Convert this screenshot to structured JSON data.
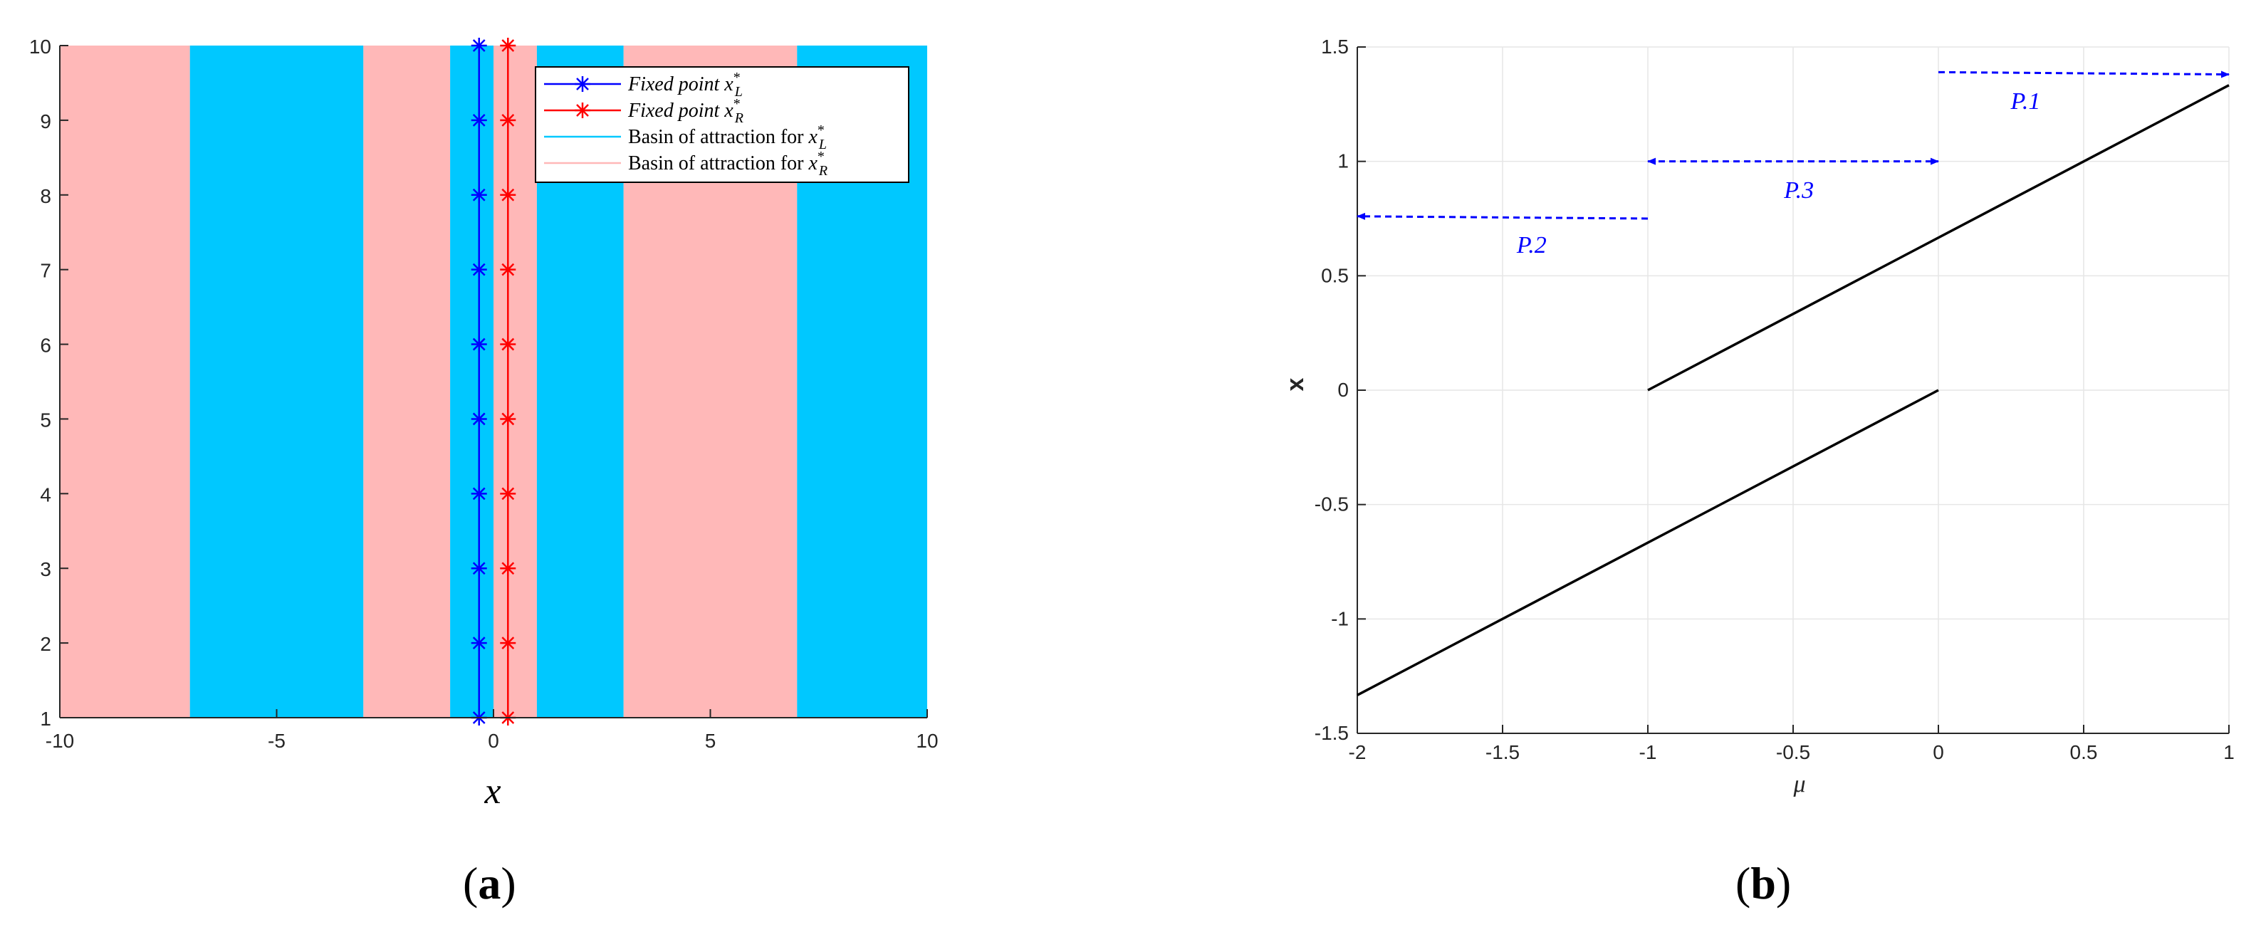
{
  "panel_labels": {
    "a_open": "(",
    "a_letter": "a",
    "a_close": ")",
    "b_open": "(",
    "b_letter": "b",
    "b_close": ")"
  },
  "colors": {
    "basin_left": "#00c8ff",
    "basin_right": "#ffb8b8",
    "fixed_left": "#0000ff",
    "fixed_right": "#ff0000",
    "branch": "#000000",
    "annotation": "#0000ff",
    "grid": "#e6e6e6"
  },
  "chart_data": [
    {
      "type": "area",
      "xlabel": "x",
      "ylabel": "",
      "xlim": [
        -10,
        10
      ],
      "ylim": [
        1,
        10
      ],
      "xticks": [
        -10,
        -5,
        0,
        5,
        10
      ],
      "yticks": [
        1,
        2,
        3,
        4,
        5,
        6,
        7,
        8,
        9,
        10
      ],
      "grid": false,
      "legend_position": "top-right",
      "basins": [
        {
          "from": -10,
          "to": -7,
          "basin": "R"
        },
        {
          "from": -7,
          "to": -3,
          "basin": "L"
        },
        {
          "from": -3,
          "to": -1,
          "basin": "R"
        },
        {
          "from": -1,
          "to": 0,
          "basin": "L"
        },
        {
          "from": 0,
          "to": 1,
          "basin": "R"
        },
        {
          "from": 1,
          "to": 3,
          "basin": "L"
        },
        {
          "from": 3,
          "to": 7,
          "basin": "R"
        },
        {
          "from": 7,
          "to": 10,
          "basin": "L"
        }
      ],
      "series": [
        {
          "name": "Fixed point x*_L",
          "x": -0.333,
          "y": [
            1,
            2,
            3,
            4,
            5,
            6,
            7,
            8,
            9,
            10
          ]
        },
        {
          "name": "Fixed point x*_R",
          "x": 0.333,
          "y": [
            1,
            2,
            3,
            4,
            5,
            6,
            7,
            8,
            9,
            10
          ]
        }
      ],
      "legend": [
        {
          "prefix": "Fixed point ",
          "sym": "x",
          "sup": "*",
          "sub": "L",
          "marker": "star",
          "color_key": "fixed_left"
        },
        {
          "prefix": "Fixed point ",
          "sym": "x",
          "sup": "*",
          "sub": "R",
          "marker": "star",
          "color_key": "fixed_right"
        },
        {
          "prefix": "Basin of attraction for ",
          "sym": "x",
          "sup": "*",
          "sub": "L",
          "marker": "line",
          "color_key": "basin_left"
        },
        {
          "prefix": "Basin of attraction for ",
          "sym": "x",
          "sup": "*",
          "sub": "R",
          "marker": "line",
          "color_key": "basin_right"
        }
      ]
    },
    {
      "type": "line",
      "xlabel": "μ",
      "ylabel": "x",
      "xlim": [
        -2,
        1
      ],
      "ylim": [
        -1.5,
        1.5
      ],
      "xticks": [
        -2,
        -1.5,
        -1,
        -0.5,
        0,
        0.5,
        1
      ],
      "yticks": [
        -1.5,
        -1,
        -0.5,
        0,
        0.5,
        1,
        1.5
      ],
      "grid": true,
      "series": [
        {
          "x": [
            -2,
            0
          ],
          "y": [
            -1.333,
            0
          ]
        },
        {
          "x": [
            -1,
            1
          ],
          "y": [
            0,
            1.333
          ]
        }
      ],
      "annotations": [
        {
          "text": "P.1",
          "arrow_from": [
            0,
            1.39
          ],
          "arrow_to": [
            1,
            1.38
          ],
          "heads": "end",
          "label_at": [
            0.3,
            1.23
          ]
        },
        {
          "text": "P.2",
          "arrow_from": [
            -1,
            0.75
          ],
          "arrow_to": [
            -2,
            0.76
          ],
          "heads": "end",
          "label_at": [
            -1.4,
            0.6
          ]
        },
        {
          "text": "P.3",
          "arrow_from": [
            -1,
            1.0
          ],
          "arrow_to": [
            0,
            1.0
          ],
          "heads": "both",
          "label_at": [
            -0.48,
            0.84
          ]
        }
      ]
    }
  ]
}
